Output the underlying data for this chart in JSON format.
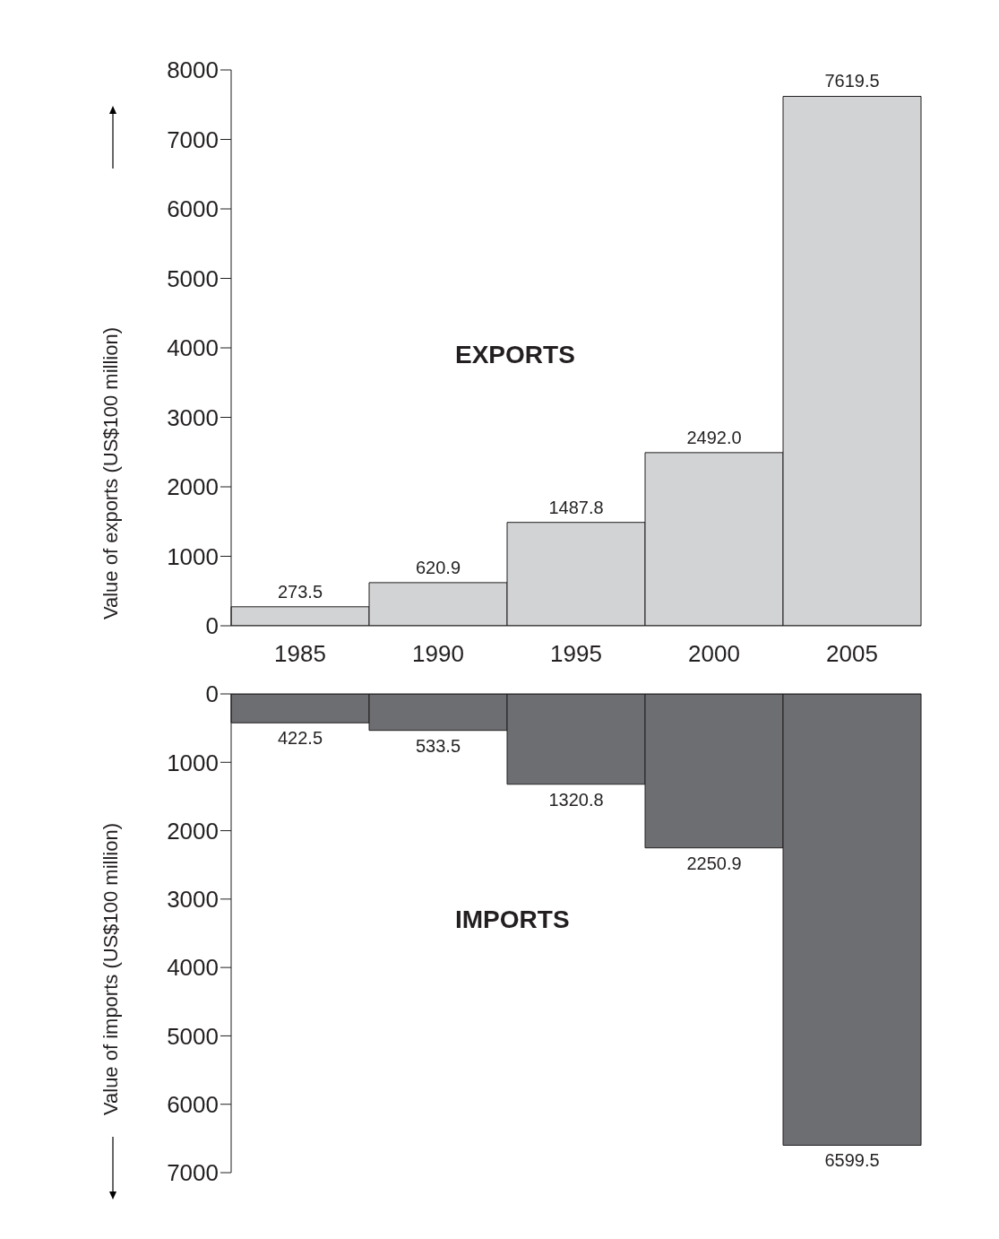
{
  "chart_data": [
    {
      "type": "bar",
      "categories": [
        "1985",
        "1990",
        "1995",
        "2000",
        "2005"
      ],
      "values": [
        273.5,
        620.9,
        1487.8,
        2492.0,
        7619.5
      ],
      "color": "#d1d3d4",
      "ylabel": "Value of exports (US$100 million)",
      "ylim": [
        0,
        8000
      ],
      "yticks": [
        0,
        1000,
        2000,
        3000,
        4000,
        5000,
        6000,
        7000,
        8000
      ],
      "data_labels": true,
      "value_labels": [
        "273.5",
        "620.9",
        "1487.8",
        "2492.0",
        "7619.5"
      ],
      "annotations": [
        "EXPORTS"
      ],
      "grid": false,
      "legend": false
    },
    {
      "type": "bar",
      "categories": [
        "1985",
        "1990",
        "1995",
        "2000",
        "2005"
      ],
      "values": [
        422.5,
        533.5,
        1320.8,
        2250.9,
        6599.5
      ],
      "color": "#6d6e71",
      "ylabel": "Value of imports (US$100 million)",
      "ylim": [
        7000,
        0
      ],
      "yticks": [
        0,
        1000,
        2000,
        3000,
        4000,
        5000,
        6000,
        7000
      ],
      "data_labels": true,
      "value_labels": [
        "422.5",
        "533.5",
        "1320.8",
        "2250.9",
        "6599.5"
      ],
      "annotations": [
        "IMPORTS"
      ],
      "tick_labels": "y",
      "grid": false,
      "legend": false
    }
  ]
}
